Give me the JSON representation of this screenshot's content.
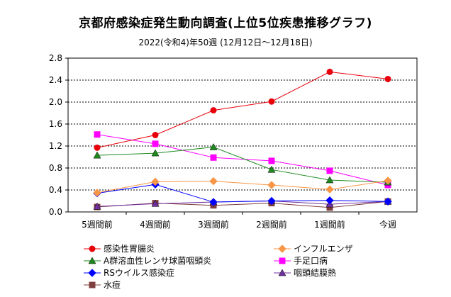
{
  "chart_data": {
    "type": "line",
    "title": "京都府感染症発生動向調査(上位5位疾患推移グラフ)",
    "subtitle": "2022(令和4)年50週 (12月12日～12月18日)",
    "categories": [
      "5週間前",
      "4週間前",
      "3週間前",
      "2週間前",
      "1週間前",
      "今週"
    ],
    "ylim": [
      0,
      2.8
    ],
    "yticks": [
      "0.0",
      "0.4",
      "0.8",
      "1.2",
      "1.6",
      "2.0",
      "2.4",
      "2.8"
    ],
    "grid": true,
    "legend_position": "bottom",
    "series": [
      {
        "name": "感染性胃腸炎",
        "color": "#e8000b",
        "marker": "circle",
        "values": [
          1.17,
          1.4,
          1.85,
          2.01,
          2.55,
          2.42
        ]
      },
      {
        "name": "インフルエンザ",
        "color": "#f79646",
        "marker": "diamond",
        "values": [
          0.35,
          0.55,
          0.56,
          0.49,
          0.41,
          0.57
        ]
      },
      {
        "name": "A群溶血性レンサ球菌咽頭炎",
        "color": "#1e8a1e",
        "marker": "triangle",
        "values": [
          1.03,
          1.07,
          1.18,
          0.77,
          0.58,
          0.54
        ]
      },
      {
        "name": "手足口病",
        "color": "#ff00ff",
        "marker": "square",
        "values": [
          1.41,
          1.24,
          0.99,
          0.93,
          0.75,
          0.49
        ]
      },
      {
        "name": "RSウイルス感染症",
        "color": "#0000ff",
        "marker": "diamond",
        "values": [
          0.34,
          0.5,
          0.18,
          0.2,
          0.21,
          0.19
        ]
      },
      {
        "name": "咽頭結膜熱",
        "color": "#7030a0",
        "marker": "triangle",
        "values": [
          0.1,
          0.15,
          0.18,
          0.2,
          0.14,
          0.19
        ]
      },
      {
        "name": "水痘",
        "color": "#7f3f3f",
        "marker": "square",
        "values": [
          0.09,
          0.16,
          0.12,
          0.16,
          0.08,
          0.19
        ]
      }
    ]
  }
}
